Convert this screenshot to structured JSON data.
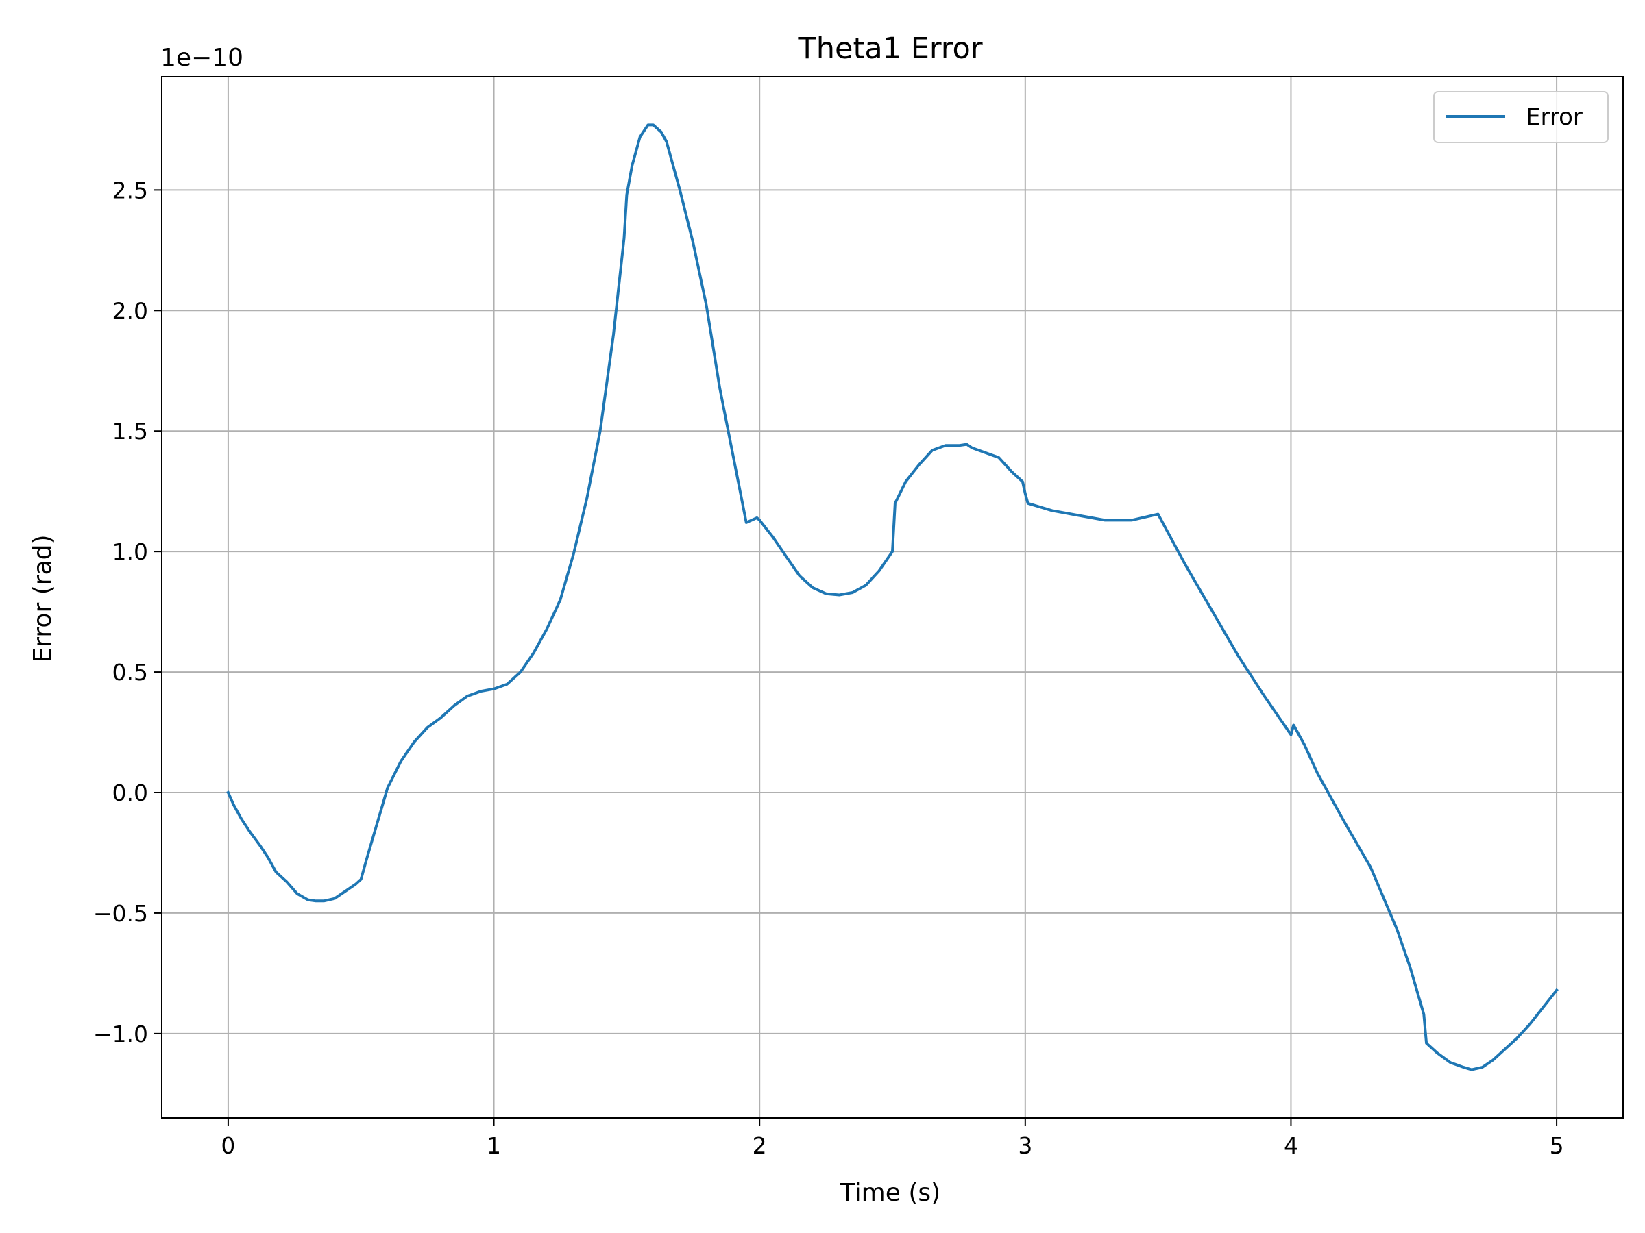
{
  "chart_data": {
    "type": "line",
    "title": "Theta1 Error",
    "xlabel": "Time (s)",
    "ylabel": "Error (rad)",
    "y_offset_label": "1e−10",
    "y_scale": 1e-10,
    "xlim": [
      -0.25,
      5.25
    ],
    "ylim": [
      -1.35,
      2.97
    ],
    "x_ticks": [
      0,
      1,
      2,
      3,
      4,
      5
    ],
    "x_tick_labels": [
      "0",
      "1",
      "2",
      "3",
      "4",
      "5"
    ],
    "y_ticks": [
      -1.0,
      -0.5,
      0.0,
      0.5,
      1.0,
      1.5,
      2.0,
      2.5
    ],
    "y_tick_labels": [
      "−1.0",
      "−0.5",
      "0.0",
      "0.5",
      "1.0",
      "1.5",
      "2.0",
      "2.5"
    ],
    "grid": true,
    "legend": {
      "position": "top-right",
      "entries": [
        "Error"
      ]
    },
    "colors": {
      "series": "#1f77b4",
      "grid": "#b0b0b0"
    },
    "series": [
      {
        "name": "Error",
        "x": [
          0,
          0.02,
          0.05,
          0.08,
          0.12,
          0.15,
          0.18,
          0.22,
          0.26,
          0.3,
          0.33,
          0.36,
          0.4,
          0.44,
          0.48,
          0.5,
          0.52,
          0.56,
          0.6,
          0.65,
          0.7,
          0.75,
          0.8,
          0.85,
          0.9,
          0.95,
          1.0,
          1.05,
          1.1,
          1.15,
          1.2,
          1.25,
          1.3,
          1.35,
          1.4,
          1.45,
          1.49,
          1.5,
          1.52,
          1.55,
          1.58,
          1.6,
          1.63,
          1.65,
          1.7,
          1.75,
          1.8,
          1.85,
          1.9,
          1.95,
          1.99,
          2.0,
          2.05,
          2.1,
          2.15,
          2.2,
          2.25,
          2.3,
          2.35,
          2.4,
          2.45,
          2.5,
          2.51,
          2.55,
          2.6,
          2.65,
          2.7,
          2.75,
          2.78,
          2.8,
          2.85,
          2.9,
          2.95,
          2.99,
          3.0,
          3.01,
          3.1,
          3.2,
          3.3,
          3.4,
          3.5,
          3.6,
          3.7,
          3.8,
          3.9,
          4.0,
          4.01,
          4.05,
          4.1,
          4.2,
          4.3,
          4.4,
          4.45,
          4.5,
          4.51,
          4.55,
          4.6,
          4.65,
          4.68,
          4.72,
          4.76,
          4.8,
          4.85,
          4.9,
          4.95,
          5.0
        ],
        "values": [
          0.0,
          -0.05,
          -0.11,
          -0.16,
          -0.22,
          -0.27,
          -0.33,
          -0.37,
          -0.42,
          -0.445,
          -0.45,
          -0.45,
          -0.44,
          -0.41,
          -0.38,
          -0.36,
          -0.28,
          -0.13,
          0.02,
          0.13,
          0.21,
          0.27,
          0.31,
          0.36,
          0.4,
          0.42,
          0.43,
          0.45,
          0.5,
          0.58,
          0.68,
          0.8,
          0.99,
          1.22,
          1.5,
          1.9,
          2.3,
          2.48,
          2.6,
          2.72,
          2.77,
          2.77,
          2.74,
          2.7,
          2.5,
          2.28,
          2.02,
          1.68,
          1.4,
          1.12,
          1.14,
          1.13,
          1.06,
          0.98,
          0.9,
          0.85,
          0.825,
          0.82,
          0.83,
          0.86,
          0.92,
          1.0,
          1.2,
          1.29,
          1.36,
          1.42,
          1.44,
          1.44,
          1.445,
          1.43,
          1.41,
          1.39,
          1.33,
          1.29,
          1.24,
          1.2,
          1.17,
          1.15,
          1.13,
          1.13,
          1.155,
          0.95,
          0.76,
          0.57,
          0.4,
          0.24,
          0.28,
          0.2,
          0.08,
          -0.12,
          -0.31,
          -0.57,
          -0.73,
          -0.92,
          -1.04,
          -1.08,
          -1.12,
          -1.14,
          -1.15,
          -1.14,
          -1.11,
          -1.07,
          -1.02,
          -0.96,
          -0.89,
          -0.82
        ]
      }
    ]
  }
}
